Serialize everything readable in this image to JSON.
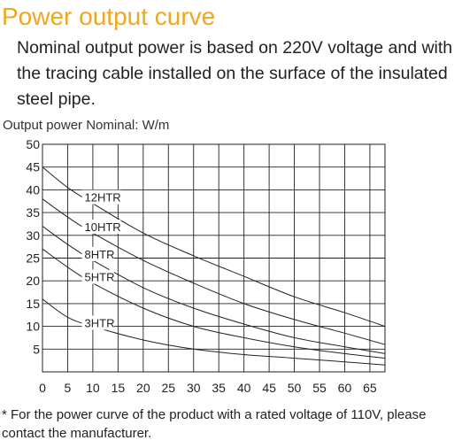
{
  "page": {
    "title": "Power output curve",
    "description": "Nominal output power is based on 220V voltage and with the tracing cable installed on the surface of the insulated steel pipe.",
    "footnote": "* For the power curve of the product with a rated voltage of 110V, please contact the manufacturer."
  },
  "colors": {
    "title": "#f0a71e",
    "grid": "#222222",
    "curve": "#222222",
    "text": "#222222"
  },
  "chart_data": {
    "type": "line",
    "title": "",
    "xlabel": "",
    "ylabel": "Output power Nominal: W/m",
    "xlim": [
      0,
      68
    ],
    "ylim": [
      0,
      50
    ],
    "grid": true,
    "x_ticks": [
      0,
      5,
      10,
      15,
      20,
      25,
      30,
      35,
      40,
      45,
      50,
      55,
      60,
      65
    ],
    "y_ticks": [
      5,
      10,
      15,
      20,
      25,
      30,
      35,
      40,
      45,
      50
    ],
    "series": [
      {
        "name": "12HTR",
        "x": [
          0,
          5,
          10,
          20,
          30,
          40,
          50,
          60,
          68
        ],
        "y": [
          45,
          40.5,
          37,
          30.5,
          25.5,
          21,
          16.5,
          13,
          10
        ]
      },
      {
        "name": "10HTR",
        "x": [
          0,
          5,
          10,
          20,
          30,
          40,
          50,
          60,
          68
        ],
        "y": [
          38,
          34,
          30.5,
          24.5,
          19.5,
          15,
          11.5,
          8.5,
          6
        ]
      },
      {
        "name": "8HTR",
        "x": [
          0,
          5,
          10,
          20,
          30,
          40,
          50,
          60,
          68
        ],
        "y": [
          32,
          28,
          24.5,
          18.5,
          14,
          10.5,
          7.5,
          5.5,
          4
        ]
      },
      {
        "name": "5HTR",
        "x": [
          0,
          5,
          10,
          20,
          30,
          40,
          50,
          60,
          68
        ],
        "y": [
          27,
          23,
          19.5,
          14,
          10,
          7.5,
          5.5,
          4,
          3
        ]
      },
      {
        "name": "3HTR",
        "x": [
          0,
          5,
          10,
          20,
          30,
          40,
          50,
          60,
          68
        ],
        "y": [
          16,
          12,
          10,
          7,
          5,
          3.8,
          3,
          2.2,
          1.5
        ]
      }
    ],
    "series_labels": [
      {
        "text": "12HTR",
        "series": "12HTR",
        "at_x": 8
      },
      {
        "text": "10HTR",
        "series": "10HTR",
        "at_x": 8
      },
      {
        "text": "8HTR",
        "series": "8HTR",
        "at_x": 8
      },
      {
        "text": "5HTR",
        "series": "5HTR",
        "at_x": 8
      },
      {
        "text": "3HTR",
        "series": "3HTR",
        "at_x": 8
      }
    ]
  }
}
